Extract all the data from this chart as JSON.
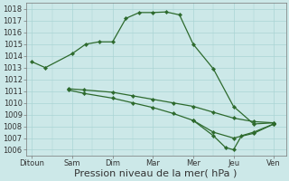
{
  "xlabel": "Pression niveau de la mer( hPa )",
  "xtick_labels": [
    "Ditoun",
    "Sam",
    "Dim",
    "Mar",
    "Mer",
    "Jeu",
    "Ven"
  ],
  "ylim": [
    1005.5,
    1018.5
  ],
  "yticks": [
    1006,
    1007,
    1008,
    1009,
    1010,
    1011,
    1012,
    1013,
    1014,
    1015,
    1016,
    1017,
    1018
  ],
  "bg_color": "#cce8e8",
  "grid_color": "#aad4d4",
  "line_color": "#2d6a2d",
  "line1_x": [
    0,
    0.33,
    1.0,
    1.33,
    1.66,
    2.0,
    2.33,
    2.66,
    3.0,
    3.33,
    3.66,
    4.0,
    4.5,
    5.0,
    5.5,
    6.0
  ],
  "line1_y": [
    1013.5,
    1013.0,
    1014.2,
    1015.0,
    1015.2,
    1015.2,
    1017.2,
    1017.7,
    1017.7,
    1017.75,
    1017.5,
    1015.0,
    1012.9,
    1009.7,
    1008.2,
    1008.3
  ],
  "line2_x": [
    0.9,
    1.3,
    2.0,
    2.5,
    3.0,
    3.5,
    4.0,
    4.5,
    5.0,
    5.5,
    6.0
  ],
  "line2_y": [
    1011.2,
    1011.1,
    1010.9,
    1010.6,
    1010.3,
    1010.0,
    1009.7,
    1009.2,
    1008.7,
    1008.4,
    1008.3
  ],
  "line3_x": [
    0.9,
    1.3,
    2.0,
    2.5,
    3.0,
    3.5,
    4.0,
    4.5,
    5.0,
    5.5,
    6.0
  ],
  "line3_y": [
    1011.1,
    1010.8,
    1010.4,
    1010.0,
    1009.6,
    1009.1,
    1008.5,
    1007.5,
    1007.0,
    1007.4,
    1008.2
  ],
  "line4_x": [
    4.0,
    4.5,
    4.8,
    5.0,
    5.2,
    5.5,
    6.0
  ],
  "line4_y": [
    1008.5,
    1007.2,
    1006.2,
    1006.0,
    1007.2,
    1007.5,
    1008.2
  ],
  "xlabel_fontsize": 8,
  "tick_fontsize": 6
}
